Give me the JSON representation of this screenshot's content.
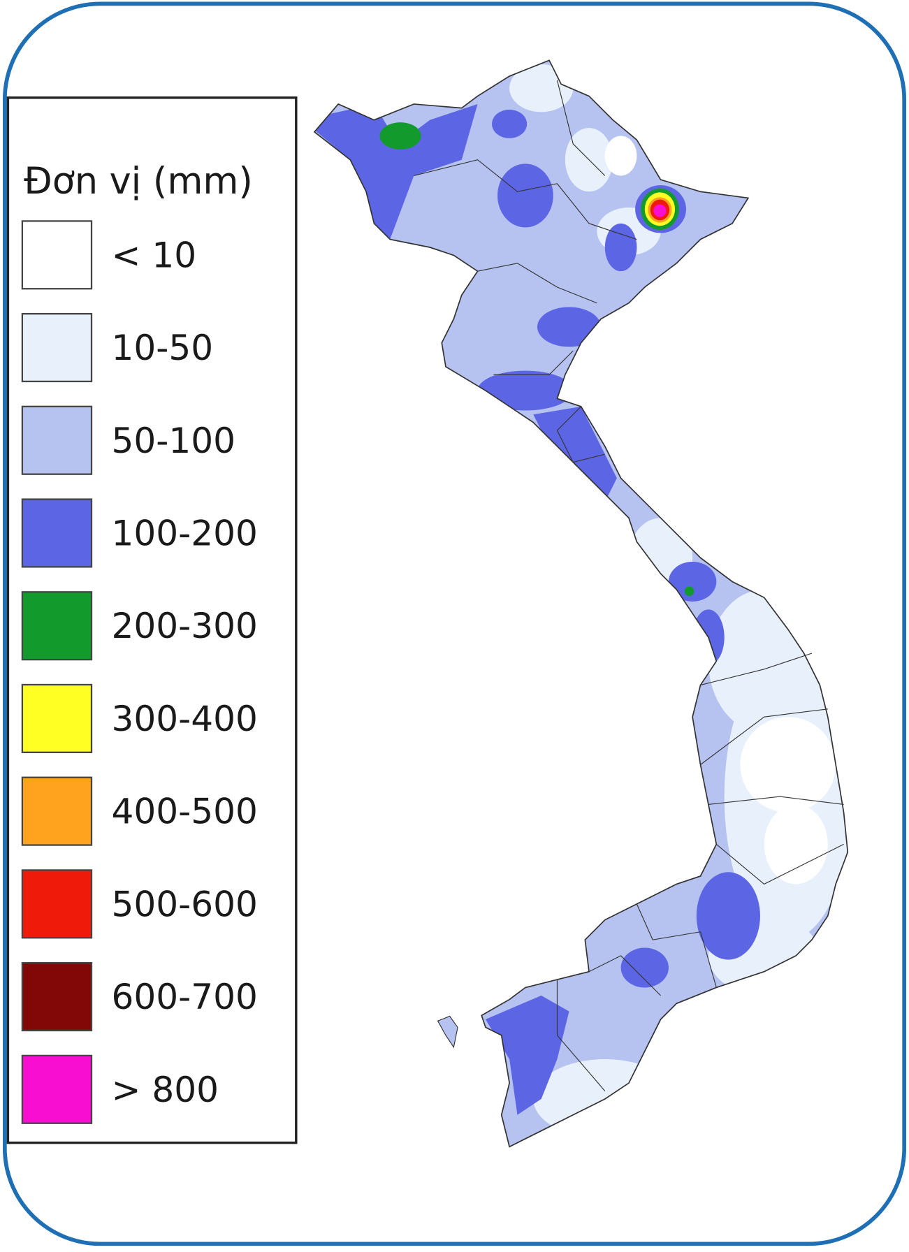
{
  "legend": {
    "title": "Đơn vị (mm)",
    "items": [
      {
        "label": "< 10",
        "color": "#ffffff"
      },
      {
        "label": "10-50",
        "color": "#e8f1fb"
      },
      {
        "label": "50-100",
        "color": "#b6c3f1"
      },
      {
        "label": "100-200",
        "color": "#5c66e4"
      },
      {
        "label": "200-300",
        "color": "#139a2c"
      },
      {
        "label": "300-400",
        "color": "#ffff24"
      },
      {
        "label": "400-500",
        "color": "#ffa21e"
      },
      {
        "label": "500-600",
        "color": "#f01a0a"
      },
      {
        "label": "600-700",
        "color": "#820808"
      },
      {
        "label": "> 800",
        "color": "#f70ed0"
      }
    ]
  }
}
